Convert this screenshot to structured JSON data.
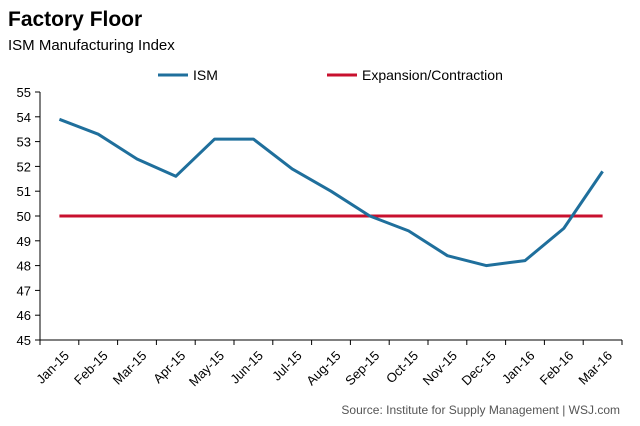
{
  "chart_data": {
    "type": "line",
    "title": "Factory Floor",
    "subtitle": "ISM Manufacturing Index",
    "source": "Source: Institute for Supply Management  |  WSJ.com",
    "categories": [
      "Jan-15",
      "Feb-15",
      "Mar-15",
      "Apr-15",
      "May-15",
      "Jun-15",
      "Jul-15",
      "Aug-15",
      "Sep-15",
      "Oct-15",
      "Nov-15",
      "Dec-15",
      "Jan-16",
      "Feb-16",
      "Mar-16"
    ],
    "series": [
      {
        "name": "ISM",
        "color": "#1F6F9C",
        "values": [
          53.9,
          53.3,
          52.3,
          51.6,
          53.1,
          53.1,
          51.9,
          51.0,
          50.0,
          49.4,
          48.4,
          48.0,
          48.2,
          49.5,
          51.8
        ]
      },
      {
        "name": "Expansion/Contraction",
        "color": "#C8102E",
        "values": [
          50,
          50,
          50,
          50,
          50,
          50,
          50,
          50,
          50,
          50,
          50,
          50,
          50,
          50,
          50
        ]
      }
    ],
    "ylim": [
      45,
      55
    ],
    "yticks": [
      45,
      46,
      47,
      48,
      49,
      50,
      51,
      52,
      53,
      54,
      55
    ],
    "xlabel": "",
    "ylabel": "",
    "grid": false,
    "legend": "top"
  }
}
